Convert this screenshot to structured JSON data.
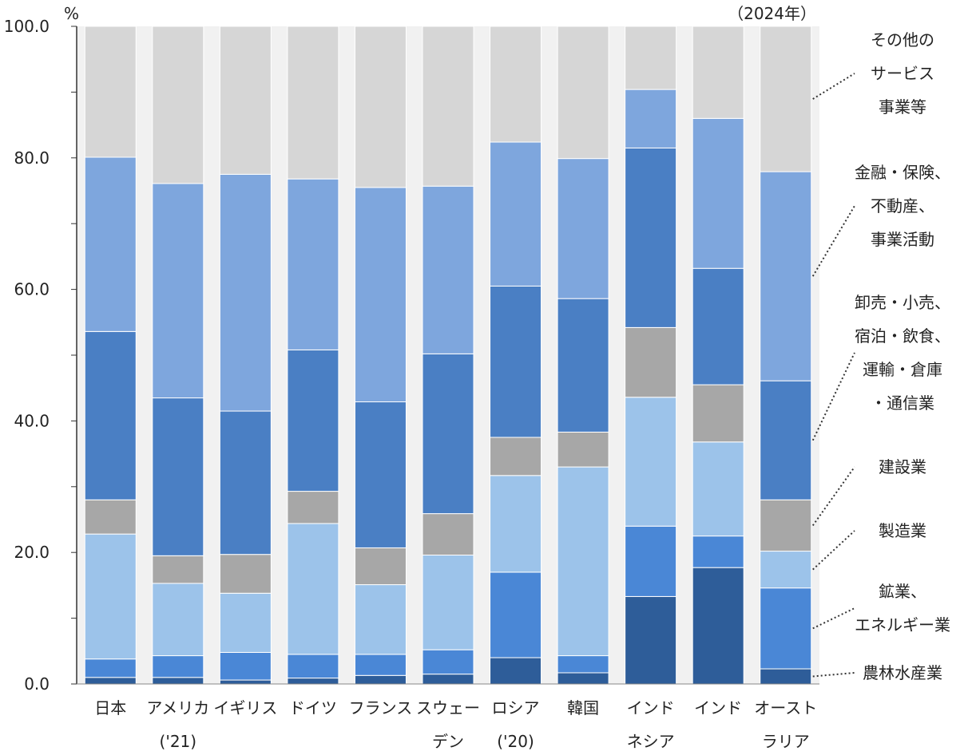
{
  "chart_data": {
    "type": "bar",
    "stacked": true,
    "y_unit": "%",
    "year_note": "（2024年）",
    "ylim": [
      0,
      100
    ],
    "yticks": [
      "0.0",
      "20.0",
      "40.0",
      "60.0",
      "80.0",
      "100.0"
    ],
    "categories": [
      [
        "日本"
      ],
      [
        "アメリカ",
        "('21)"
      ],
      [
        "イギリス"
      ],
      [
        "ドイツ"
      ],
      [
        "フランス"
      ],
      [
        "スウェー",
        "デン"
      ],
      [
        "ロシア",
        "('20)"
      ],
      [
        "韓国"
      ],
      [
        "インド",
        "ネシア"
      ],
      [
        "インド"
      ],
      [
        "オースト",
        "ラリア"
      ]
    ],
    "series": [
      {
        "name": "農林水産業",
        "legend_lines": [
          "農林水産業"
        ],
        "color": "#2e5d99",
        "values": [
          1.0,
          1.0,
          0.6,
          0.9,
          1.3,
          1.5,
          4.0,
          1.7,
          13.3,
          17.7,
          2.3
        ]
      },
      {
        "name": "鉱業、エネルギー業",
        "legend_lines": [
          "鉱業、",
          "エネルギー業"
        ],
        "color": "#4a87d6",
        "values": [
          2.8,
          3.3,
          4.2,
          3.6,
          3.2,
          3.7,
          13.0,
          2.6,
          10.7,
          4.8,
          12.3
        ]
      },
      {
        "name": "製造業",
        "legend_lines": [
          "製造業"
        ],
        "color": "#9cc3ea",
        "values": [
          19.0,
          11.0,
          9.0,
          19.9,
          10.6,
          14.4,
          14.7,
          28.7,
          19.6,
          14.3,
          5.6
        ]
      },
      {
        "name": "建設業",
        "legend_lines": [
          "建設業"
        ],
        "color": "#a7a7a7",
        "values": [
          5.2,
          4.2,
          5.9,
          4.9,
          5.6,
          6.3,
          5.8,
          5.3,
          10.6,
          8.7,
          7.8
        ]
      },
      {
        "name": "卸売・小売、宿泊・飲食、運輸・倉庫・通信業",
        "legend_lines": [
          "卸売・小売、",
          "宿泊・飲食、",
          "運輸・倉庫",
          "・通信業"
        ],
        "color": "#4a7fc4",
        "values": [
          25.6,
          24.0,
          21.8,
          21.5,
          22.2,
          24.3,
          23.0,
          20.3,
          27.3,
          17.7,
          18.1
        ]
      },
      {
        "name": "金融・保険、不動産、事業活動",
        "legend_lines": [
          "金融・保険、",
          "不動産、",
          "事業活動"
        ],
        "color": "#7ea6dd",
        "values": [
          26.5,
          32.6,
          36.0,
          26.0,
          32.6,
          25.5,
          21.9,
          21.3,
          8.9,
          22.8,
          31.8
        ]
      },
      {
        "name": "その他のサービス事業等",
        "legend_lines": [
          "その他の",
          "サービス",
          "事業等"
        ],
        "color": "#d6d6d6",
        "values": [
          19.9,
          23.9,
          22.5,
          23.2,
          24.5,
          24.3,
          17.6,
          20.1,
          9.6,
          14.0,
          22.1
        ]
      }
    ],
    "legend_placement": "right",
    "grid": false
  }
}
